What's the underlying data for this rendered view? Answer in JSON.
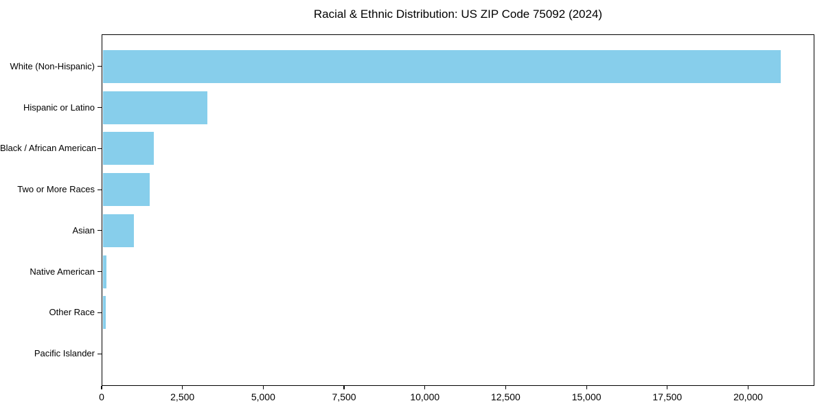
{
  "title": "Racial & Ethnic Distribution: US ZIP Code 75092 (2024)",
  "colors": {
    "bar": "#87CEEB",
    "axis": "#000000",
    "text": "#000000",
    "background": "#ffffff"
  },
  "chart_data": {
    "type": "bar",
    "orientation": "horizontal",
    "title": "Racial & Ethnic Distribution: US ZIP Code 75092 (2024)",
    "categories": [
      "White (Non-Hispanic)",
      "Hispanic or Latino",
      "Black / African American",
      "Two or More Races",
      "Asian",
      "Native American",
      "Other Race",
      "Pacific Islander"
    ],
    "values": [
      21000,
      3250,
      1575,
      1450,
      960,
      120,
      90,
      0
    ],
    "xlabel": "",
    "ylabel": "",
    "xlim": [
      0,
      22050
    ],
    "x_ticks": [
      0,
      2500,
      5000,
      7500,
      10000,
      12500,
      15000,
      17500,
      20000
    ],
    "x_tick_labels": [
      "0",
      "2,500",
      "5,000",
      "7,500",
      "10,000",
      "12,500",
      "15,000",
      "17,500",
      "20,000"
    ],
    "grid": false,
    "legend": "none",
    "bar_color": "#87CEEB"
  }
}
